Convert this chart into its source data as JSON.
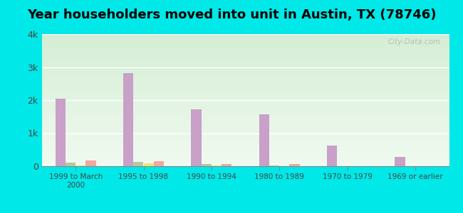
{
  "title": "Year householders moved into unit in Austin, TX (78746)",
  "categories": [
    "1999 to March\n2000",
    "1995 to 1998",
    "1990 to 1994",
    "1980 to 1989",
    "1970 to 1979",
    "1969 or earlier"
  ],
  "series": {
    "White Non-Hispanic": [
      2050,
      2820,
      1720,
      1580,
      620,
      290
    ],
    "Asian": [
      110,
      120,
      55,
      15,
      5,
      0
    ],
    "Other Race": [
      20,
      90,
      20,
      10,
      0,
      0
    ],
    "Hispanic or Latino": [
      180,
      160,
      60,
      60,
      0,
      0
    ]
  },
  "colors": {
    "White Non-Hispanic": "#c8a0c8",
    "Asian": "#b8c8a0",
    "Other Race": "#e8e870",
    "Hispanic or Latino": "#f0a8a0"
  },
  "ylim": [
    0,
    4000
  ],
  "yticks": [
    0,
    1000,
    2000,
    3000,
    4000
  ],
  "ytick_labels": [
    "0",
    "1k",
    "2k",
    "3k",
    "4k"
  ],
  "bg_color_top": "#d4edd4",
  "bg_color_bottom": "#f0faf0",
  "outer_bg": "#00e8e8",
  "watermark": "City-Data.com",
  "bar_width": 0.15,
  "title_fontsize": 13
}
